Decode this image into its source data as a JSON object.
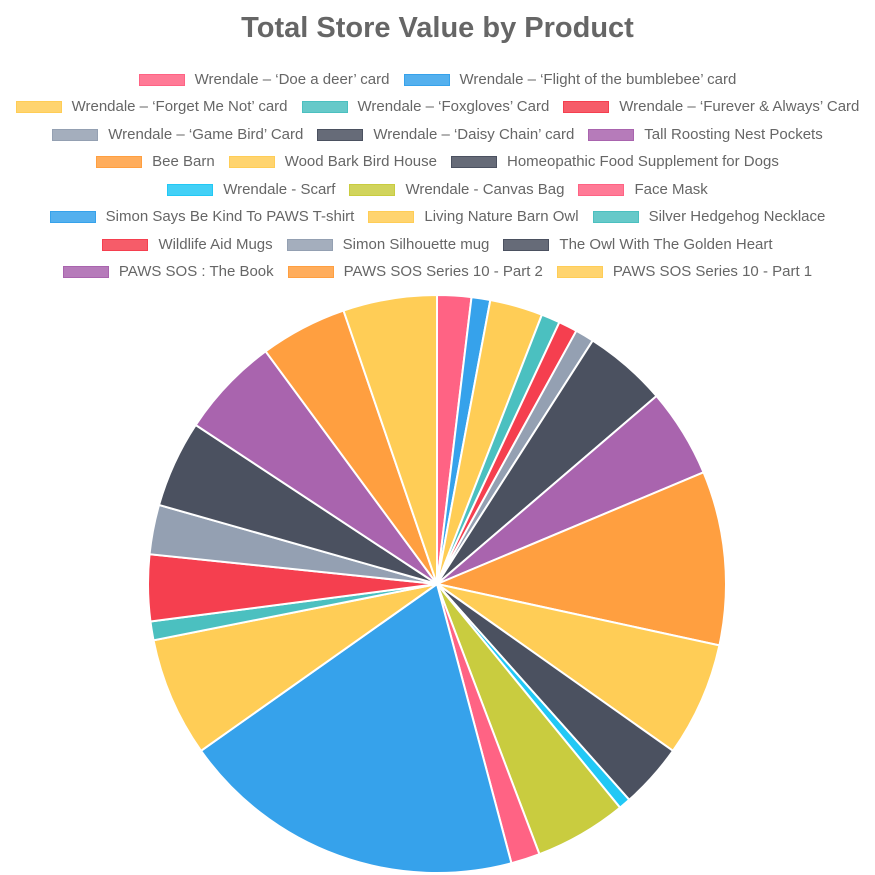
{
  "chart_data": {
    "type": "pie",
    "title": "Total Store Value by Product",
    "legend_position": "top",
    "slices": [
      {
        "label": "Wrendale – ‘Doe a deer’ card",
        "value": 2.0,
        "color": "#ff6384"
      },
      {
        "label": "Wrendale – ‘Flight of the bumblebee’ card",
        "value": 1.1,
        "color": "#36a2eb"
      },
      {
        "label": "Wrendale – ‘Forget Me Not’ card",
        "value": 3.1,
        "color": "#ffcd56"
      },
      {
        "label": "Wrendale – ‘Foxgloves’ Card",
        "value": 1.1,
        "color": "#4bc0c0"
      },
      {
        "label": "Wrendale – ‘Furever & Always’ Card",
        "value": 1.1,
        "color": "#f53f4f"
      },
      {
        "label": "Wrendale – ‘Game Bird’ Card",
        "value": 1.1,
        "color": "#94a0b2"
      },
      {
        "label": "Wrendale – ‘Daisy Chain’ card",
        "value": 4.9,
        "color": "#4b5160"
      },
      {
        "label": "Tall Roosting Nest Pockets",
        "value": 5.2,
        "color": "#a964ae"
      },
      {
        "label": "Bee Barn",
        "value": 10.2,
        "color": "#ff9f40"
      },
      {
        "label": "Wood Bark Bird House",
        "value": 6.7,
        "color": "#ffcd56"
      },
      {
        "label": "Homeopathic Food Supplement for Dogs",
        "value": 3.8,
        "color": "#4b5160"
      },
      {
        "label": "Wrendale - Scarf",
        "value": 0.7,
        "color": "#22c8f5"
      },
      {
        "label": "Wrendale - Canvas Bag",
        "value": 5.4,
        "color": "#c9cc3f"
      },
      {
        "label": "Face Mask",
        "value": 1.7,
        "color": "#ff6384"
      },
      {
        "label": "Simon Says Be Kind To PAWS T-shirt",
        "value": 20.3,
        "color": "#36a2eb"
      },
      {
        "label": "Living Nature Barn Owl",
        "value": 7.0,
        "color": "#ffcd56"
      },
      {
        "label": "Silver Hedgehog Necklace",
        "value": 1.1,
        "color": "#4bc0c0"
      },
      {
        "label": "Wildlife Aid Mugs",
        "value": 3.9,
        "color": "#f53f4f"
      },
      {
        "label": "Simon Silhouette mug",
        "value": 2.9,
        "color": "#94a0b2"
      },
      {
        "label": "The Owl With The Golden Heart",
        "value": 5.1,
        "color": "#4b5160"
      },
      {
        "label": "PAWS SOS : The Book",
        "value": 5.9,
        "color": "#a964ae"
      },
      {
        "label": "PAWS SOS Series 10 - Part 2",
        "value": 5.1,
        "color": "#ff9f40"
      },
      {
        "label": "PAWS SOS Series 10 - Part 1",
        "value": 5.5,
        "color": "#ffcd56"
      }
    ]
  }
}
